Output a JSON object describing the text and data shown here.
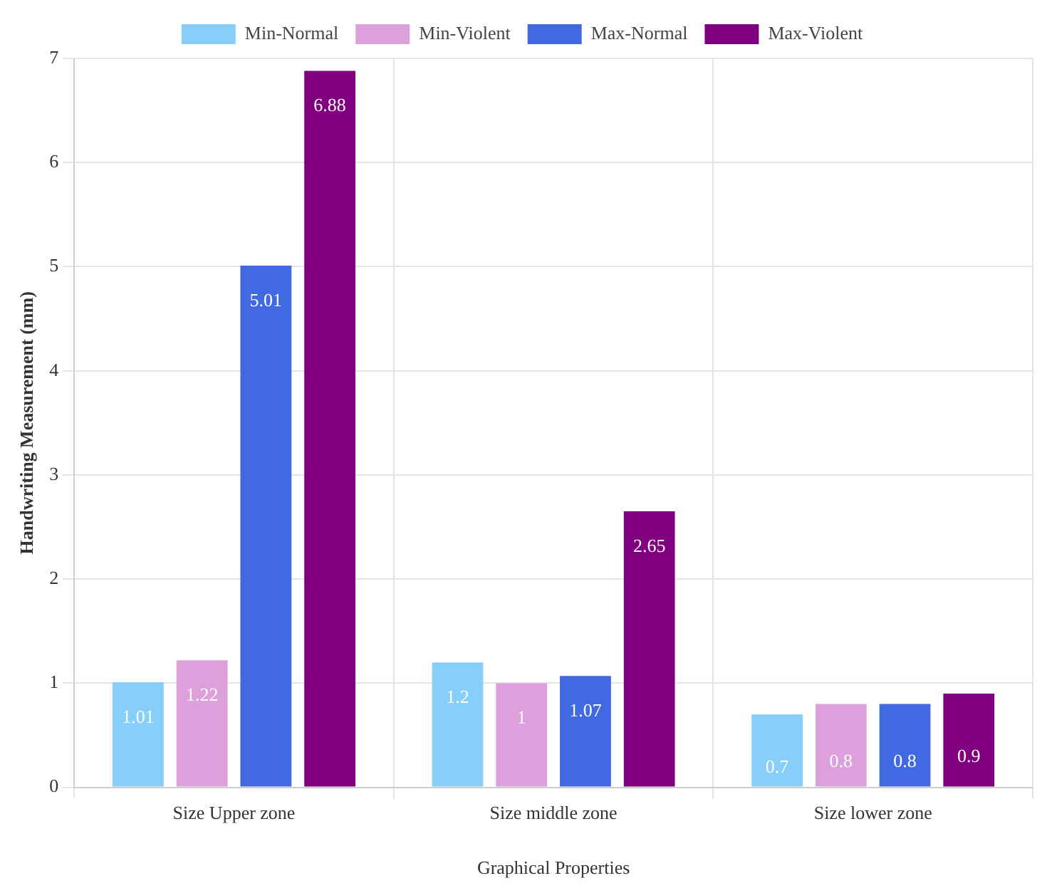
{
  "chart_data": {
    "type": "bar",
    "xlabel": "Graphical Properties",
    "ylabel": "Handwriting Measurement (mm)",
    "categories": [
      "Size Upper zone",
      "Size middle zone",
      "Size lower zone"
    ],
    "series": [
      {
        "name": "Min-Normal",
        "color": "#87cefa",
        "values": [
          1.01,
          1.2,
          0.7
        ]
      },
      {
        "name": "Min-Violent",
        "color": "#dda0dd",
        "values": [
          1.22,
          1,
          0.8
        ]
      },
      {
        "name": "Max-Normal",
        "color": "#4169e1",
        "values": [
          5.01,
          1.07,
          0.8
        ]
      },
      {
        "name": "Max-Violent",
        "color": "#800080",
        "values": [
          6.88,
          2.65,
          0.9
        ]
      }
    ],
    "ylim": [
      0,
      7
    ],
    "yticks": [
      0,
      1,
      2,
      3,
      4,
      5,
      6,
      7
    ],
    "grid": true,
    "legend": "top",
    "data_labels": true
  }
}
